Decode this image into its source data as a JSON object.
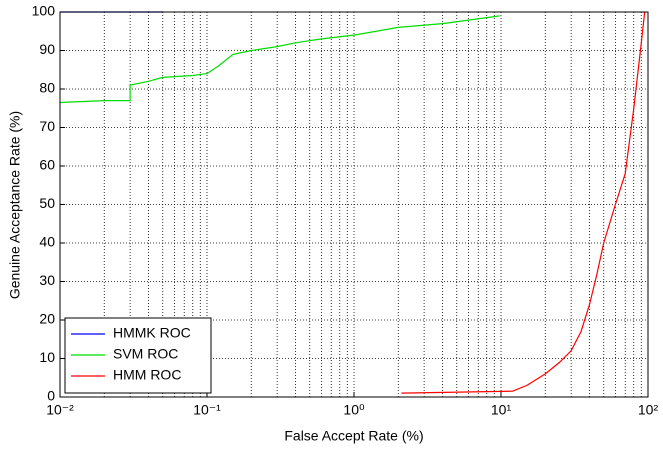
{
  "chart_data": {
    "type": "line",
    "xlabel": "False Accept Rate (%)",
    "ylabel": "Genuine Acceptance Rate (%)",
    "xscale": "log",
    "xlim": [
      0.01,
      100
    ],
    "ylim": [
      0,
      100
    ],
    "xticks": [
      {
        "value": 0.01,
        "label": "10⁻²"
      },
      {
        "value": 0.1,
        "label": "10⁻¹"
      },
      {
        "value": 1,
        "label": "10⁰"
      },
      {
        "value": 10,
        "label": "10¹"
      },
      {
        "value": 100,
        "label": "10²"
      }
    ],
    "xminorticks": [
      0.02,
      0.03,
      0.04,
      0.05,
      0.06,
      0.07,
      0.08,
      0.09,
      0.2,
      0.3,
      0.4,
      0.5,
      0.6,
      0.7,
      0.8,
      0.9,
      2,
      3,
      4,
      5,
      6,
      7,
      8,
      9,
      20,
      30,
      40,
      50,
      60,
      70,
      80,
      90
    ],
    "yticks": [
      0,
      10,
      20,
      30,
      40,
      50,
      60,
      70,
      80,
      90,
      100
    ],
    "grid": true,
    "legend": "lower left",
    "series": [
      {
        "name": "HMMK ROC",
        "color": "#0000ff",
        "x": [
          0.01,
          0.05
        ],
        "values": [
          100,
          100
        ]
      },
      {
        "name": "SVM ROC",
        "color": "#00dd00",
        "x": [
          0.01,
          0.02,
          0.03,
          0.03,
          0.04,
          0.05,
          0.08,
          0.1,
          0.12,
          0.15,
          0.2,
          0.3,
          0.4,
          0.6,
          1,
          2,
          4,
          9.8
        ],
        "values": [
          76.5,
          77,
          77,
          81,
          82,
          83,
          83.5,
          84,
          86,
          89,
          90,
          91,
          92,
          93,
          94,
          96,
          97,
          99
        ]
      },
      {
        "name": "HMM ROC",
        "color": "#ff0000",
        "x": [
          2.1,
          12,
          15,
          20,
          25,
          30,
          35,
          40,
          45,
          50,
          60,
          70,
          80,
          90,
          95
        ],
        "values": [
          1,
          1.5,
          3,
          6,
          9,
          12,
          17,
          24,
          32,
          40,
          50,
          58,
          75,
          92,
          100
        ]
      }
    ]
  }
}
